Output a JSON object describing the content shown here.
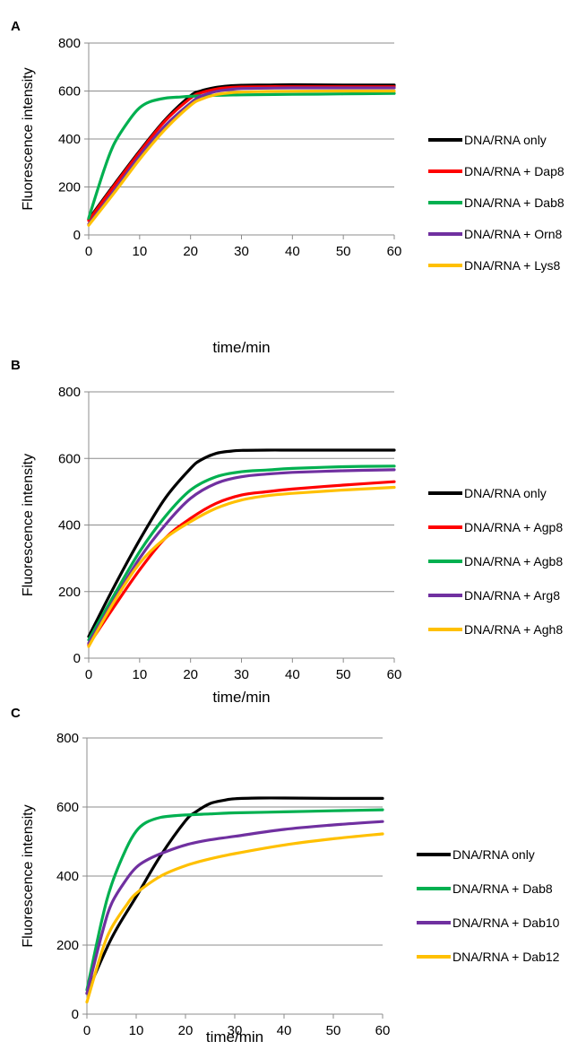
{
  "chart_data": [
    {
      "panel": "A",
      "type": "line",
      "xlabel": "time/min",
      "ylabel": "Fluorescence intensity",
      "xlim": [
        0,
        60
      ],
      "ylim": [
        0,
        800
      ],
      "xticks": [
        0,
        10,
        20,
        30,
        40,
        50,
        60
      ],
      "yticks": [
        0,
        200,
        400,
        600,
        800
      ],
      "grid": "horizontal",
      "legend": "right",
      "series": [
        {
          "name": "DNA/RNA only",
          "color": "#000000",
          "x": [
            0,
            5,
            10,
            15,
            20,
            22,
            25,
            28,
            30,
            35,
            40,
            50,
            60
          ],
          "y": [
            65,
            210,
            350,
            480,
            580,
            600,
            615,
            622,
            624,
            625,
            626,
            625,
            625
          ]
        },
        {
          "name": "DNA/RNA + Dap8",
          "color": "#ff0000",
          "x": [
            0,
            5,
            10,
            15,
            20,
            22,
            25,
            28,
            30,
            35,
            40,
            50,
            60
          ],
          "y": [
            60,
            205,
            345,
            475,
            570,
            592,
            608,
            615,
            617,
            618,
            618,
            618,
            618
          ]
        },
        {
          "name": "DNA/RNA + Dab8",
          "color": "#00b050",
          "x": [
            0,
            3,
            5,
            8,
            10,
            12,
            15,
            18,
            20,
            25,
            30,
            40,
            50,
            60
          ],
          "y": [
            70,
            270,
            380,
            480,
            530,
            555,
            570,
            575,
            578,
            582,
            584,
            586,
            588,
            590
          ]
        },
        {
          "name": "DNA/RNA + Orn8",
          "color": "#7030a0",
          "x": [
            0,
            5,
            10,
            15,
            20,
            22,
            25,
            28,
            30,
            35,
            40,
            50,
            60
          ],
          "y": [
            45,
            185,
            330,
            455,
            550,
            578,
            598,
            607,
            610,
            612,
            613,
            613,
            613
          ]
        },
        {
          "name": "DNA/RNA + Lys8",
          "color": "#ffc000",
          "x": [
            0,
            5,
            10,
            15,
            20,
            22,
            25,
            28,
            30,
            35,
            40,
            50,
            60
          ],
          "y": [
            40,
            175,
            315,
            440,
            540,
            565,
            585,
            593,
            596,
            598,
            599,
            600,
            600
          ]
        }
      ]
    },
    {
      "panel": "B",
      "type": "line",
      "xlabel": "time/min",
      "ylabel": "Fluorescence intensity",
      "xlim": [
        0,
        60
      ],
      "ylim": [
        0,
        800
      ],
      "xticks": [
        0,
        10,
        20,
        30,
        40,
        50,
        60
      ],
      "yticks": [
        0,
        200,
        400,
        600,
        800
      ],
      "grid": "horizontal",
      "legend": "right",
      "series": [
        {
          "name": "DNA/RNA only",
          "color": "#000000",
          "x": [
            0,
            5,
            10,
            15,
            20,
            22,
            25,
            28,
            30,
            35,
            40,
            50,
            60
          ],
          "y": [
            65,
            215,
            355,
            480,
            570,
            595,
            615,
            622,
            624,
            625,
            625,
            625,
            625
          ]
        },
        {
          "name": "DNA/RNA + Agp8",
          "color": "#ff0000",
          "x": [
            0,
            5,
            10,
            15,
            20,
            25,
            30,
            35,
            40,
            50,
            60
          ],
          "y": [
            40,
            155,
            265,
            360,
            420,
            465,
            490,
            500,
            508,
            520,
            530
          ]
        },
        {
          "name": "DNA/RNA + Agb8",
          "color": "#00b050",
          "x": [
            0,
            5,
            10,
            15,
            20,
            25,
            30,
            35,
            40,
            50,
            60
          ],
          "y": [
            55,
            190,
            320,
            425,
            505,
            545,
            560,
            565,
            570,
            575,
            577
          ]
        },
        {
          "name": "DNA/RNA + Arg8",
          "color": "#7030a0",
          "x": [
            0,
            5,
            10,
            15,
            20,
            25,
            30,
            35,
            40,
            50,
            60
          ],
          "y": [
            45,
            175,
            300,
            400,
            480,
            525,
            545,
            553,
            558,
            563,
            566
          ]
        },
        {
          "name": "DNA/RNA + Agh8",
          "color": "#ffc000",
          "x": [
            0,
            5,
            10,
            15,
            20,
            25,
            30,
            35,
            40,
            50,
            60
          ],
          "y": [
            35,
            170,
            285,
            360,
            410,
            450,
            475,
            488,
            495,
            505,
            513
          ]
        }
      ]
    },
    {
      "panel": "C",
      "type": "line",
      "xlabel": "time/min",
      "ylabel": "Fluorescence intensity",
      "xlim": [
        0,
        60
      ],
      "ylim": [
        0,
        800
      ],
      "xticks": [
        0,
        10,
        20,
        30,
        40,
        50,
        60
      ],
      "yticks": [
        0,
        200,
        400,
        600,
        800
      ],
      "grid": "horizontal",
      "legend": "right",
      "series": [
        {
          "name": "DNA/RNA only",
          "color": "#000000",
          "x": [
            0,
            5,
            10,
            15,
            20,
            22,
            25,
            28,
            30,
            35,
            40,
            50,
            60
          ],
          "y": [
            60,
            220,
            340,
            460,
            560,
            585,
            610,
            620,
            624,
            626,
            626,
            625,
            625
          ]
        },
        {
          "name": "DNA/RNA + Dab8",
          "color": "#00b050",
          "x": [
            0,
            3,
            5,
            8,
            10,
            12,
            15,
            18,
            20,
            25,
            30,
            40,
            50,
            60
          ],
          "y": [
            70,
            270,
            375,
            480,
            530,
            555,
            570,
            575,
            577,
            580,
            583,
            586,
            589,
            592
          ]
        },
        {
          "name": "DNA/RNA + Dab10",
          "color": "#7030a0",
          "x": [
            0,
            3,
            5,
            8,
            10,
            12,
            15,
            20,
            25,
            30,
            40,
            50,
            60
          ],
          "y": [
            60,
            230,
            320,
            390,
            425,
            445,
            465,
            490,
            505,
            515,
            535,
            548,
            558
          ]
        },
        {
          "name": "DNA/RNA + Dab12",
          "color": "#ffc000",
          "x": [
            0,
            3,
            5,
            8,
            10,
            15,
            20,
            25,
            30,
            40,
            50,
            60
          ],
          "y": [
            35,
            180,
            250,
            315,
            350,
            400,
            430,
            450,
            465,
            490,
            508,
            522
          ]
        }
      ]
    }
  ]
}
